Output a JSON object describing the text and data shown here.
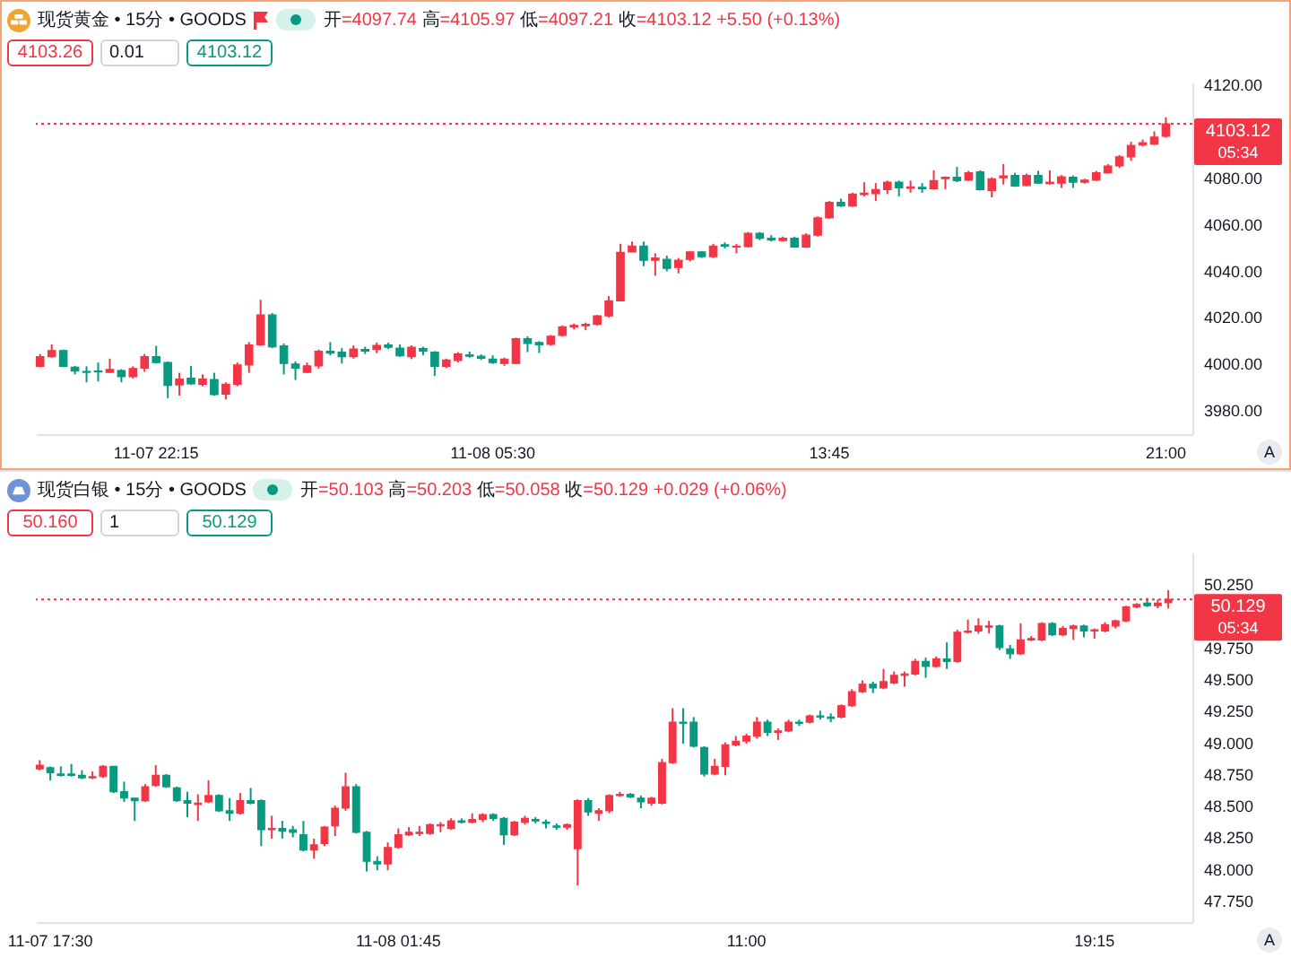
{
  "chart_data": [
    {
      "type": "candlestick",
      "title": "现货黄金 • 15分 • GOODS",
      "subtitle": "开=4097.74 高=4105.97 低=4097.21 收=4103.12 +5.50 (+0.13%)",
      "categories": [
        null,
        null,
        null,
        null,
        null,
        null,
        null,
        null,
        null,
        null,
        "11-07 22:15",
        null,
        null,
        null,
        null,
        null,
        null,
        null,
        null,
        null,
        null,
        null,
        null,
        null,
        null,
        null,
        null,
        null,
        null,
        null,
        null,
        null,
        null,
        null,
        null,
        null,
        null,
        null,
        null,
        "11-08 05:30",
        null,
        null,
        null,
        null,
        null,
        null,
        null,
        null,
        null,
        null,
        null,
        null,
        null,
        null,
        null,
        null,
        null,
        null,
        null,
        null,
        null,
        null,
        null,
        null,
        null,
        null,
        null,
        null,
        "13:45",
        null,
        null,
        null,
        null,
        null,
        null,
        null,
        null,
        null,
        null,
        null,
        null,
        null,
        null,
        null,
        null,
        null,
        null,
        null,
        null,
        null,
        null,
        null,
        null,
        null,
        null,
        null,
        null,
        "21:00"
      ],
      "ohlc": [
        [
          3998.8,
          4004.1,
          3998.4,
          4002.9
        ],
        [
          4002.9,
          4008.2,
          4002.5,
          4005.6
        ],
        [
          4005.6,
          4006.0,
          3998.4,
          3998.8
        ],
        [
          3998.4,
          3999.0,
          3995.3,
          3996.8
        ],
        [
          3996.6,
          3998.8,
          3991.9,
          3996.2
        ],
        [
          3996.8,
          4000.4,
          3992.3,
          3996.4
        ],
        [
          3996.2,
          4002.1,
          3996.0,
          3997.4
        ],
        [
          3997.0,
          3997.6,
          3991.9,
          3994.3
        ],
        [
          3994.3,
          3998.8,
          3993.5,
          3997.8
        ],
        [
          3998.0,
          4004.1,
          3996.4,
          4002.9
        ],
        [
          4002.9,
          4007.6,
          4000.0,
          4000.4
        ],
        [
          4000.4,
          4000.9,
          3985.1,
          3990.6
        ],
        [
          3990.8,
          3996.0,
          3986.2,
          3993.3
        ],
        [
          3993.7,
          3999.0,
          3990.8,
          3991.3
        ],
        [
          3991.1,
          3995.3,
          3990.2,
          3993.3
        ],
        [
          3993.1,
          3996.0,
          3986.2,
          3986.6
        ],
        [
          3986.8,
          3991.9,
          3984.5,
          3991.1
        ],
        [
          3991.1,
          4000.4,
          3990.2,
          3999.4
        ],
        [
          3999.4,
          4009.2,
          3996.0,
          4008.0
        ],
        [
          4008.0,
          4027.4,
          4007.6,
          4020.9
        ],
        [
          4020.9,
          4021.7,
          4006.6,
          4007.2
        ],
        [
          4007.6,
          4008.6,
          3995.3,
          4000.0
        ],
        [
          3999.8,
          4000.9,
          3992.9,
          3998.0
        ],
        [
          3996.2,
          4000.4,
          3996.0,
          3999.0
        ],
        [
          3999.0,
          4006.0,
          3997.8,
          4005.3
        ],
        [
          4005.3,
          4009.2,
          4003.5,
          4004.5
        ],
        [
          4004.9,
          4006.6,
          4000.0,
          4002.9
        ],
        [
          4002.9,
          4007.8,
          4002.1,
          4006.2
        ],
        [
          4006.0,
          4007.2,
          4004.1,
          4005.3
        ],
        [
          4006.0,
          4009.0,
          4004.5,
          4007.8
        ],
        [
          4008.0,
          4009.0,
          4006.2,
          4007.0
        ],
        [
          4006.6,
          4008.2,
          4002.9,
          4003.3
        ],
        [
          4002.9,
          4007.8,
          4001.9,
          4007.0
        ],
        [
          4006.4,
          4007.2,
          4003.5,
          4005.3
        ],
        [
          4004.9,
          4005.3,
          3994.7,
          3998.8
        ],
        [
          3998.8,
          4002.1,
          3998.0,
          4001.5
        ],
        [
          4001.3,
          4004.9,
          4000.4,
          4004.1
        ],
        [
          4003.7,
          4005.1,
          4002.5,
          4003.1
        ],
        [
          4003.1,
          4003.9,
          4001.5,
          4002.3
        ],
        [
          4001.9,
          4003.5,
          3999.8,
          4000.4
        ],
        [
          4000.0,
          4002.5,
          3999.0,
          4001.9
        ],
        [
          4000.0,
          4011.1,
          3999.8,
          4010.7
        ],
        [
          4010.7,
          4011.7,
          4004.9,
          4008.6
        ],
        [
          4009.0,
          4009.6,
          4004.5,
          4008.0
        ],
        [
          4008.2,
          4012.3,
          4007.6,
          4011.7
        ],
        [
          4012.1,
          4016.4,
          4011.5,
          4015.8
        ],
        [
          4015.8,
          4017.2,
          4014.7,
          4016.4
        ],
        [
          4016.2,
          4017.6,
          4014.3,
          4016.8
        ],
        [
          4016.8,
          4020.9,
          4016.4,
          4020.5
        ],
        [
          4020.5,
          4029.0,
          4019.8,
          4027.0
        ],
        [
          4027.0,
          4051.5,
          4027.0,
          4047.8
        ],
        [
          4048.0,
          4052.5,
          4047.8,
          4050.5
        ],
        [
          4050.5,
          4052.5,
          4041.9,
          4044.4
        ],
        [
          4044.4,
          4047.4,
          4037.8,
          4045.4
        ],
        [
          4044.8,
          4046.4,
          4039.7,
          4040.9
        ],
        [
          4041.3,
          4045.4,
          4038.8,
          4044.4
        ],
        [
          4044.8,
          4048.4,
          4043.9,
          4048.0
        ],
        [
          4048.0,
          4048.4,
          4045.4,
          4046.0
        ],
        [
          4046.0,
          4051.5,
          4045.4,
          4050.5
        ],
        [
          4051.1,
          4052.1,
          4049.5,
          4050.5
        ],
        [
          4050.1,
          4051.5,
          4047.4,
          4050.5
        ],
        [
          4050.3,
          4056.6,
          4049.9,
          4056.0
        ],
        [
          4056.0,
          4056.6,
          4053.1,
          4053.9
        ],
        [
          4053.9,
          4055.2,
          4052.5,
          4053.1
        ],
        [
          4052.9,
          4054.6,
          4052.5,
          4053.9
        ],
        [
          4053.9,
          4054.6,
          4049.9,
          4050.1
        ],
        [
          4050.1,
          4056.0,
          4049.7,
          4055.2
        ],
        [
          4055.2,
          4063.3,
          4054.6,
          4062.7
        ],
        [
          4062.7,
          4069.9,
          4062.3,
          4069.3
        ],
        [
          4069.3,
          4070.9,
          4067.4,
          4067.8
        ],
        [
          4067.8,
          4073.5,
          4067.4,
          4072.9
        ],
        [
          4072.7,
          4078.0,
          4071.9,
          4073.3
        ],
        [
          4073.1,
          4077.6,
          4069.9,
          4074.8
        ],
        [
          4074.8,
          4078.7,
          4072.9,
          4078.0
        ],
        [
          4078.0,
          4078.7,
          4071.9,
          4075.6
        ],
        [
          4075.4,
          4078.7,
          4073.5,
          4076.0
        ],
        [
          4075.8,
          4077.6,
          4073.5,
          4075.2
        ],
        [
          4075.2,
          4083.1,
          4074.8,
          4078.7
        ],
        [
          4079.5,
          4080.5,
          4075.0,
          4080.1
        ],
        [
          4080.1,
          4084.6,
          4078.0,
          4078.7
        ],
        [
          4078.9,
          4082.9,
          4078.5,
          4082.1
        ],
        [
          4082.5,
          4083.1,
          4074.4,
          4074.8
        ],
        [
          4074.4,
          4080.1,
          4071.5,
          4079.5
        ],
        [
          4079.9,
          4085.8,
          4077.0,
          4080.7
        ],
        [
          4080.9,
          4082.1,
          4076.0,
          4076.4
        ],
        [
          4076.6,
          4081.7,
          4076.4,
          4080.9
        ],
        [
          4080.9,
          4082.9,
          4077.4,
          4077.6
        ],
        [
          4077.4,
          4083.1,
          4077.0,
          4078.0
        ],
        [
          4077.6,
          4081.1,
          4075.6,
          4080.3
        ],
        [
          4080.1,
          4080.9,
          4075.6,
          4078.0
        ],
        [
          4078.0,
          4079.5,
          4077.4,
          4078.9
        ],
        [
          4078.9,
          4082.9,
          4078.5,
          4082.1
        ],
        [
          4082.1,
          4085.8,
          4081.7,
          4085.0
        ],
        [
          4085.0,
          4089.7,
          4084.2,
          4088.9
        ],
        [
          4088.9,
          4095.4,
          4087.2,
          4093.8
        ],
        [
          4094.0,
          4096.4,
          4093.4,
          4095.0
        ],
        [
          4094.4,
          4099.9,
          4094.0,
          4097.4
        ],
        [
          4097.74,
          4105.97,
          4097.21,
          4103.12
        ]
      ],
      "colors": [
        "#f23645",
        "#f23645",
        "#089981",
        "#089981",
        "#089981",
        "#089981",
        "#f23645",
        "#089981",
        "#f23645",
        "#f23645",
        "#089981",
        "#089981",
        "#f23645",
        "#089981",
        "#f23645",
        "#089981",
        "#f23645",
        "#f23645",
        "#f23645",
        "#f23645",
        "#089981",
        "#089981",
        "#089981",
        "#f23645",
        "#f23645",
        "#089981",
        "#089981",
        "#f23645",
        "#089981",
        "#f23645",
        "#089981",
        "#089981",
        "#f23645",
        "#089981",
        "#089981",
        "#f23645",
        "#f23645",
        "#089981",
        "#089981",
        "#089981",
        "#f23645",
        "#f23645",
        "#089981",
        "#089981",
        "#f23645",
        "#f23645",
        "#f23645",
        "#f23645",
        "#f23645",
        "#f23645",
        "#f23645",
        "#f23645",
        "#089981",
        "#f23645",
        "#089981",
        "#f23645",
        "#f23645",
        "#089981",
        "#f23645",
        "#089981",
        "#f23645",
        "#f23645",
        "#089981",
        "#089981",
        "#f23645",
        "#089981",
        "#f23645",
        "#f23645",
        "#f23645",
        "#089981",
        "#f23645",
        "#f23645",
        "#f23645",
        "#f23645",
        "#089981",
        "#f23645",
        "#089981",
        "#f23645",
        "#f23645",
        "#089981",
        "#f23645",
        "#089981",
        "#f23645",
        "#f23645",
        "#089981",
        "#f23645",
        "#089981",
        "#f23645",
        "#f23645",
        "#089981",
        "#f23645",
        "#f23645",
        "#f23645",
        "#f23645",
        "#f23645",
        "#f23645",
        "#f23645",
        "#f23645"
      ],
      "ylim": [
        3969.6,
        4120.9
      ],
      "yticks": [
        {
          "value": 3980,
          "label": "3980.00"
        },
        {
          "value": 4000,
          "label": "4000.00"
        },
        {
          "value": 4020,
          "label": "4020.00"
        },
        {
          "value": 4040,
          "label": "4040.00"
        },
        {
          "value": 4060,
          "label": "4060.00"
        },
        {
          "value": 4080,
          "label": "4080.00"
        },
        {
          "value": 4120,
          "label": "4120.00"
        }
      ],
      "ref_lines": [
        {
          "axis": "y",
          "value": 4103.12,
          "label": "4103.12",
          "color": "#f23645",
          "line_style": "dotted"
        }
      ],
      "annotations": [
        "4103.26",
        "0.01",
        "4103.12",
        "05:34",
        "A"
      ]
    },
    {
      "type": "candlestick",
      "title": "现货白银 • 15分 • GOODS",
      "subtitle": "开=50.103 高=50.203 低=50.058 收=50.129 +0.029 (+0.06%)",
      "categories": [
        null,
        "11-07 17:30",
        null,
        null,
        null,
        null,
        null,
        null,
        null,
        null,
        null,
        null,
        null,
        null,
        null,
        null,
        null,
        null,
        null,
        null,
        null,
        null,
        null,
        null,
        null,
        null,
        null,
        null,
        null,
        null,
        null,
        null,
        null,
        null,
        "11-08 01:45",
        null,
        null,
        null,
        null,
        null,
        null,
        null,
        null,
        null,
        null,
        null,
        null,
        null,
        null,
        null,
        null,
        null,
        null,
        null,
        null,
        null,
        null,
        null,
        null,
        null,
        null,
        null,
        null,
        null,
        null,
        null,
        null,
        "11:00",
        null,
        null,
        null,
        null,
        null,
        null,
        null,
        null,
        null,
        null,
        null,
        null,
        null,
        null,
        null,
        null,
        null,
        null,
        null,
        null,
        null,
        null,
        null,
        null,
        null,
        null,
        null,
        null,
        null,
        null,
        null,
        null,
        "19:15",
        null,
        null,
        null,
        null,
        null,
        null,
        null
      ],
      "ohlc": [
        [
          48.79,
          48.86,
          48.78,
          48.82
        ],
        [
          48.8,
          48.81,
          48.7,
          48.76
        ],
        [
          48.75,
          48.81,
          48.73,
          48.74
        ],
        [
          48.75,
          48.83,
          48.73,
          48.74
        ],
        [
          48.74,
          48.78,
          48.71,
          48.72
        ],
        [
          48.72,
          48.77,
          48.71,
          48.73
        ],
        [
          48.73,
          48.82,
          48.72,
          48.81
        ],
        [
          48.81,
          48.81,
          48.6,
          48.61
        ],
        [
          48.61,
          48.69,
          48.53,
          48.56
        ],
        [
          48.56,
          48.56,
          48.38,
          48.54
        ],
        [
          48.54,
          48.67,
          48.53,
          48.65
        ],
        [
          48.66,
          48.82,
          48.65,
          48.74
        ],
        [
          48.74,
          48.75,
          48.64,
          48.65
        ],
        [
          48.64,
          48.65,
          48.53,
          48.54
        ],
        [
          48.54,
          48.61,
          48.41,
          48.52
        ],
        [
          48.51,
          48.59,
          48.38,
          48.52
        ],
        [
          48.53,
          48.7,
          48.52,
          48.58
        ],
        [
          48.58,
          48.59,
          48.45,
          48.46
        ],
        [
          48.46,
          48.56,
          48.38,
          48.44
        ],
        [
          48.44,
          48.6,
          48.43,
          48.54
        ],
        [
          48.54,
          48.64,
          48.51,
          48.52
        ],
        [
          48.54,
          48.55,
          48.18,
          48.31
        ],
        [
          48.31,
          48.42,
          48.24,
          48.32
        ],
        [
          48.32,
          48.38,
          48.24,
          48.3
        ],
        [
          48.31,
          48.34,
          48.25,
          48.29
        ],
        [
          48.27,
          48.38,
          48.14,
          48.15
        ],
        [
          48.15,
          48.24,
          48.08,
          48.19
        ],
        [
          48.2,
          48.34,
          48.18,
          48.33
        ],
        [
          48.34,
          48.5,
          48.26,
          48.48
        ],
        [
          48.48,
          48.76,
          48.46,
          48.65
        ],
        [
          48.65,
          48.67,
          48.28,
          48.29
        ],
        [
          48.29,
          48.3,
          47.98,
          48.06
        ],
        [
          48.06,
          48.1,
          47.99,
          48.04
        ],
        [
          48.04,
          48.21,
          47.99,
          48.17
        ],
        [
          48.17,
          48.32,
          48.16,
          48.27
        ],
        [
          48.27,
          48.33,
          48.26,
          48.29
        ],
        [
          48.28,
          48.34,
          48.26,
          48.29
        ],
        [
          48.28,
          48.36,
          48.27,
          48.35
        ],
        [
          48.34,
          48.37,
          48.29,
          48.35
        ],
        [
          48.32,
          48.4,
          48.31,
          48.38
        ],
        [
          48.38,
          48.4,
          48.36,
          48.37
        ],
        [
          48.37,
          48.44,
          48.36,
          48.39
        ],
        [
          48.39,
          48.44,
          48.37,
          48.43
        ],
        [
          48.43,
          48.44,
          48.38,
          48.4
        ],
        [
          48.4,
          48.41,
          48.19,
          48.27
        ],
        [
          48.27,
          48.38,
          48.26,
          48.37
        ],
        [
          48.37,
          48.42,
          48.35,
          48.4
        ],
        [
          48.39,
          48.41,
          48.36,
          48.38
        ],
        [
          48.37,
          48.39,
          48.32,
          48.36
        ],
        [
          48.34,
          48.36,
          48.31,
          48.33
        ],
        [
          48.33,
          48.36,
          48.31,
          48.35
        ],
        [
          48.16,
          48.55,
          47.87,
          48.54
        ],
        [
          48.54,
          48.56,
          48.42,
          48.45
        ],
        [
          48.44,
          48.48,
          48.38,
          48.46
        ],
        [
          48.46,
          48.59,
          48.44,
          48.58
        ],
        [
          48.58,
          48.61,
          48.57,
          48.59
        ],
        [
          48.59,
          48.6,
          48.56,
          48.57
        ],
        [
          48.56,
          48.58,
          48.48,
          48.53
        ],
        [
          48.52,
          48.57,
          48.5,
          48.56
        ],
        [
          48.52,
          48.87,
          48.51,
          48.84
        ],
        [
          48.84,
          49.27,
          48.83,
          49.16
        ],
        [
          49.16,
          49.27,
          48.99,
          49.15
        ],
        [
          49.16,
          49.2,
          48.96,
          48.97
        ],
        [
          48.96,
          48.97,
          48.73,
          48.75
        ],
        [
          48.75,
          48.87,
          48.74,
          48.81
        ],
        [
          48.81,
          49.0,
          48.74,
          48.98
        ],
        [
          48.98,
          49.05,
          48.97,
          49.01
        ],
        [
          49.01,
          49.07,
          48.99,
          49.05
        ],
        [
          49.05,
          49.2,
          49.03,
          49.16
        ],
        [
          49.16,
          49.18,
          49.05,
          49.08
        ],
        [
          49.08,
          49.11,
          49.02,
          49.09
        ],
        [
          49.09,
          49.18,
          49.08,
          49.16
        ],
        [
          49.16,
          49.18,
          49.13,
          49.15
        ],
        [
          49.16,
          49.22,
          49.15,
          49.21
        ],
        [
          49.21,
          49.25,
          49.18,
          49.2
        ],
        [
          49.2,
          49.23,
          49.16,
          49.19
        ],
        [
          49.2,
          49.3,
          49.19,
          49.29
        ],
        [
          49.29,
          49.42,
          49.28,
          49.4
        ],
        [
          49.4,
          49.49,
          49.39,
          49.46
        ],
        [
          49.46,
          49.48,
          49.39,
          49.43
        ],
        [
          49.43,
          49.58,
          49.42,
          49.48
        ],
        [
          49.47,
          49.56,
          49.46,
          49.53
        ],
        [
          49.53,
          49.56,
          49.44,
          49.54
        ],
        [
          49.54,
          49.66,
          49.53,
          49.64
        ],
        [
          49.64,
          49.67,
          49.51,
          49.6
        ],
        [
          49.6,
          49.68,
          49.59,
          49.66
        ],
        [
          49.66,
          49.79,
          49.58,
          49.64
        ],
        [
          49.64,
          49.89,
          49.63,
          49.87
        ],
        [
          49.87,
          49.97,
          49.86,
          49.88
        ],
        [
          49.88,
          49.98,
          49.86,
          49.92
        ],
        [
          49.91,
          49.96,
          49.86,
          49.92
        ],
        [
          49.92,
          49.93,
          49.73,
          49.75
        ],
        [
          49.74,
          49.77,
          49.66,
          49.7
        ],
        [
          49.7,
          49.94,
          49.69,
          49.81
        ],
        [
          49.81,
          49.84,
          49.8,
          49.82
        ],
        [
          49.81,
          49.95,
          49.8,
          49.94
        ],
        [
          49.94,
          49.95,
          49.84,
          49.85
        ],
        [
          49.85,
          49.92,
          49.84,
          49.9
        ],
        [
          49.9,
          49.93,
          49.81,
          49.92
        ],
        [
          49.92,
          49.93,
          49.83,
          49.88
        ],
        [
          49.88,
          49.9,
          49.82,
          49.89
        ],
        [
          49.88,
          49.95,
          49.87,
          49.93
        ],
        [
          49.92,
          49.97,
          49.9,
          49.96
        ],
        [
          49.96,
          50.08,
          49.95,
          50.07
        ],
        [
          50.07,
          50.1,
          50.06,
          50.09
        ],
        [
          50.1,
          50.14,
          50.07,
          50.08
        ],
        [
          50.08,
          50.13,
          50.06,
          50.1
        ],
        [
          50.103,
          50.203,
          50.058,
          50.129
        ]
      ],
      "colors": [
        "#f23645",
        "#089981",
        "#089981",
        "#089981",
        "#089981",
        "#f23645",
        "#f23645",
        "#089981",
        "#089981",
        "#089981",
        "#f23645",
        "#f23645",
        "#089981",
        "#089981",
        "#089981",
        "#f23645",
        "#f23645",
        "#089981",
        "#089981",
        "#f23645",
        "#089981",
        "#089981",
        "#f23645",
        "#089981",
        "#089981",
        "#089981",
        "#f23645",
        "#f23645",
        "#f23645",
        "#f23645",
        "#089981",
        "#089981",
        "#089981",
        "#f23645",
        "#f23645",
        "#f23645",
        "#f23645",
        "#f23645",
        "#f23645",
        "#f23645",
        "#089981",
        "#f23645",
        "#f23645",
        "#089981",
        "#089981",
        "#f23645",
        "#f23645",
        "#089981",
        "#089981",
        "#089981",
        "#f23645",
        "#f23645",
        "#089981",
        "#f23645",
        "#f23645",
        "#f23645",
        "#089981",
        "#089981",
        "#f23645",
        "#f23645",
        "#f23645",
        "#089981",
        "#089981",
        "#089981",
        "#f23645",
        "#f23645",
        "#f23645",
        "#f23645",
        "#f23645",
        "#089981",
        "#f23645",
        "#f23645",
        "#089981",
        "#f23645",
        "#089981",
        "#089981",
        "#f23645",
        "#f23645",
        "#f23645",
        "#089981",
        "#f23645",
        "#f23645",
        "#f23645",
        "#f23645",
        "#089981",
        "#f23645",
        "#089981",
        "#f23645",
        "#f23645",
        "#f23645",
        "#f23645",
        "#089981",
        "#089981",
        "#f23645",
        "#f23645",
        "#f23645",
        "#089981",
        "#f23645",
        "#f23645",
        "#089981",
        "#f23645",
        "#f23645",
        "#f23645",
        "#f23645",
        "#f23645",
        "#089981",
        "#f23645",
        "#f23645"
      ],
      "ylim": [
        47.58,
        50.5
      ],
      "yticks": [
        {
          "value": 47.75,
          "label": "47.750"
        },
        {
          "value": 48,
          "label": "48.000"
        },
        {
          "value": 48.25,
          "label": "48.250"
        },
        {
          "value": 48.5,
          "label": "48.500"
        },
        {
          "value": 48.75,
          "label": "48.750"
        },
        {
          "value": 49,
          "label": "49.000"
        },
        {
          "value": 49.25,
          "label": "49.250"
        },
        {
          "value": 49.5,
          "label": "49.500"
        },
        {
          "value": 49.75,
          "label": "49.750"
        },
        {
          "value": 50.25,
          "label": "50.250"
        }
      ],
      "ref_lines": [
        {
          "axis": "y",
          "value": 50.129,
          "label": "50.129",
          "color": "#f23645",
          "line_style": "dotted"
        }
      ],
      "annotations": [
        "50.160",
        "1",
        "50.129",
        "05:34",
        "A"
      ]
    }
  ]
}
